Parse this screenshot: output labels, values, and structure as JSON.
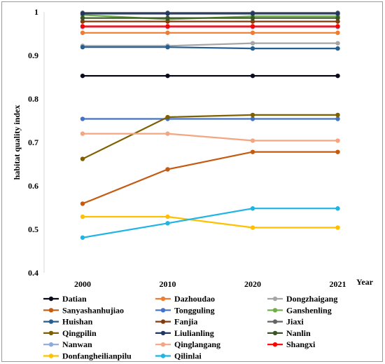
{
  "chart_data": {
    "type": "line",
    "title": "",
    "xlabel": "Year",
    "ylabel": "habitat quality index",
    "x": [
      "2000",
      "2010",
      "2020",
      "2021"
    ],
    "ylim": [
      0.4,
      1.0
    ],
    "yticks": [
      "0.4",
      "0.5",
      "0.6",
      "0.7",
      "0.8",
      "0.9",
      "1"
    ],
    "grid": false,
    "legend_position": "bottom",
    "series": [
      {
        "name": "Datian",
        "color": "#0a0a1e",
        "values": [
          0.853,
          0.853,
          0.853,
          0.853
        ]
      },
      {
        "name": "Dazhoudao",
        "color": "#ed7d31",
        "values": [
          0.952,
          0.952,
          0.952,
          0.952
        ]
      },
      {
        "name": "Dongzhaigang",
        "color": "#a5a5a5",
        "values": [
          0.922,
          0.922,
          0.928,
          0.928
        ]
      },
      {
        "name": "Sanyashanhujiao",
        "color": "#c55a11",
        "values": [
          0.559,
          0.638,
          0.678,
          0.678
        ]
      },
      {
        "name": "Tongguling",
        "color": "#4472c4",
        "values": [
          0.754,
          0.754,
          0.754,
          0.754
        ]
      },
      {
        "name": "Ganshenling",
        "color": "#70ad47",
        "values": [
          0.993,
          0.983,
          0.99,
          0.99
        ]
      },
      {
        "name": "Huishan",
        "color": "#255e91",
        "values": [
          0.919,
          0.919,
          0.916,
          0.916
        ]
      },
      {
        "name": "Fanjia",
        "color": "#843c0c",
        "values": [
          0.978,
          0.978,
          0.978,
          0.978
        ]
      },
      {
        "name": "Jiaxi",
        "color": "#636363",
        "values": [
          0.998,
          0.998,
          0.998,
          0.998
        ]
      },
      {
        "name": "Qingpilin",
        "color": "#7f6000",
        "values": [
          0.662,
          0.758,
          0.763,
          0.763
        ]
      },
      {
        "name": "Liulianling",
        "color": "#1f3864",
        "values": [
          0.996,
          0.996,
          0.996,
          0.996
        ]
      },
      {
        "name": "Nanlin",
        "color": "#375623",
        "values": [
          0.986,
          0.986,
          0.986,
          0.986
        ]
      },
      {
        "name": "Nanwan",
        "color": "#8faadc",
        "values": [
          0.965,
          0.965,
          0.965,
          0.965
        ]
      },
      {
        "name": "Qinglangang",
        "color": "#f4a582",
        "values": [
          0.72,
          0.72,
          0.704,
          0.704
        ]
      },
      {
        "name": "Shangxi",
        "color": "#ff0000",
        "values": [
          0.967,
          0.967,
          0.967,
          0.967
        ]
      },
      {
        "name": "Donfangheilianpilu",
        "color": "#ffc000",
        "values": [
          0.529,
          0.529,
          0.504,
          0.504
        ]
      },
      {
        "name": "Qilinlai",
        "color": "#1fb4e4",
        "values": [
          0.481,
          0.514,
          0.548,
          0.548
        ]
      }
    ]
  }
}
